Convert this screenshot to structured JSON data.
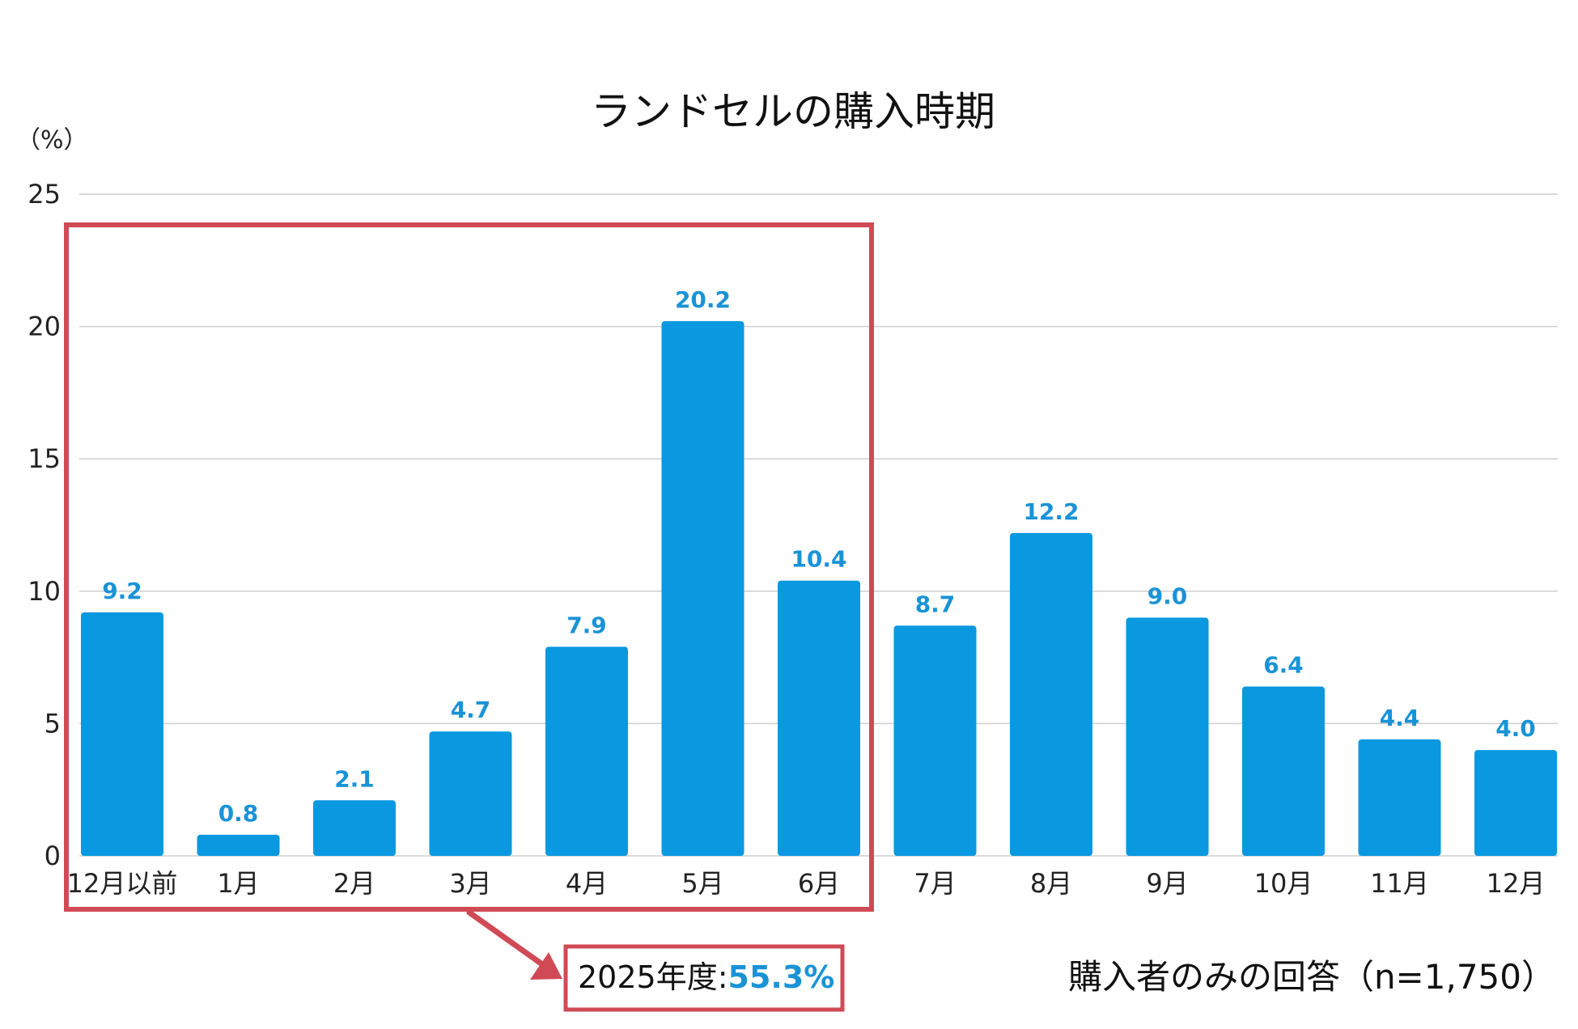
{
  "chart_data": {
    "type": "bar",
    "title": "ランドセルの購入時期",
    "unit_label": "（%）",
    "categories": [
      "12月以前",
      "1月",
      "2月",
      "3月",
      "4月",
      "5月",
      "6月",
      "7月",
      "8月",
      "9月",
      "10月",
      "11月",
      "12月"
    ],
    "values": [
      9.2,
      0.8,
      2.1,
      4.7,
      7.9,
      20.2,
      10.4,
      8.7,
      12.2,
      9.0,
      6.4,
      4.4,
      4.0
    ],
    "value_labels": [
      "9.2",
      "0.8",
      "2.1",
      "4.7",
      "7.9",
      "20.2",
      "10.4",
      "8.7",
      "12.2",
      "9.0",
      "6.4",
      "4.4",
      "4.0"
    ],
    "ylim": [
      0,
      25
    ],
    "yticks": [
      "0",
      "5",
      "10",
      "15",
      "20",
      "25"
    ],
    "grid": true,
    "bar_color": "#0a99e0",
    "label_color": "#1a93d6",
    "highlight": {
      "range": [
        "12月以前",
        "6月"
      ],
      "color": "#d04a55",
      "label_prefix": "2025年度:",
      "label_value": "55.3%"
    },
    "note": "購入者のみの回答（n=1,750）"
  }
}
